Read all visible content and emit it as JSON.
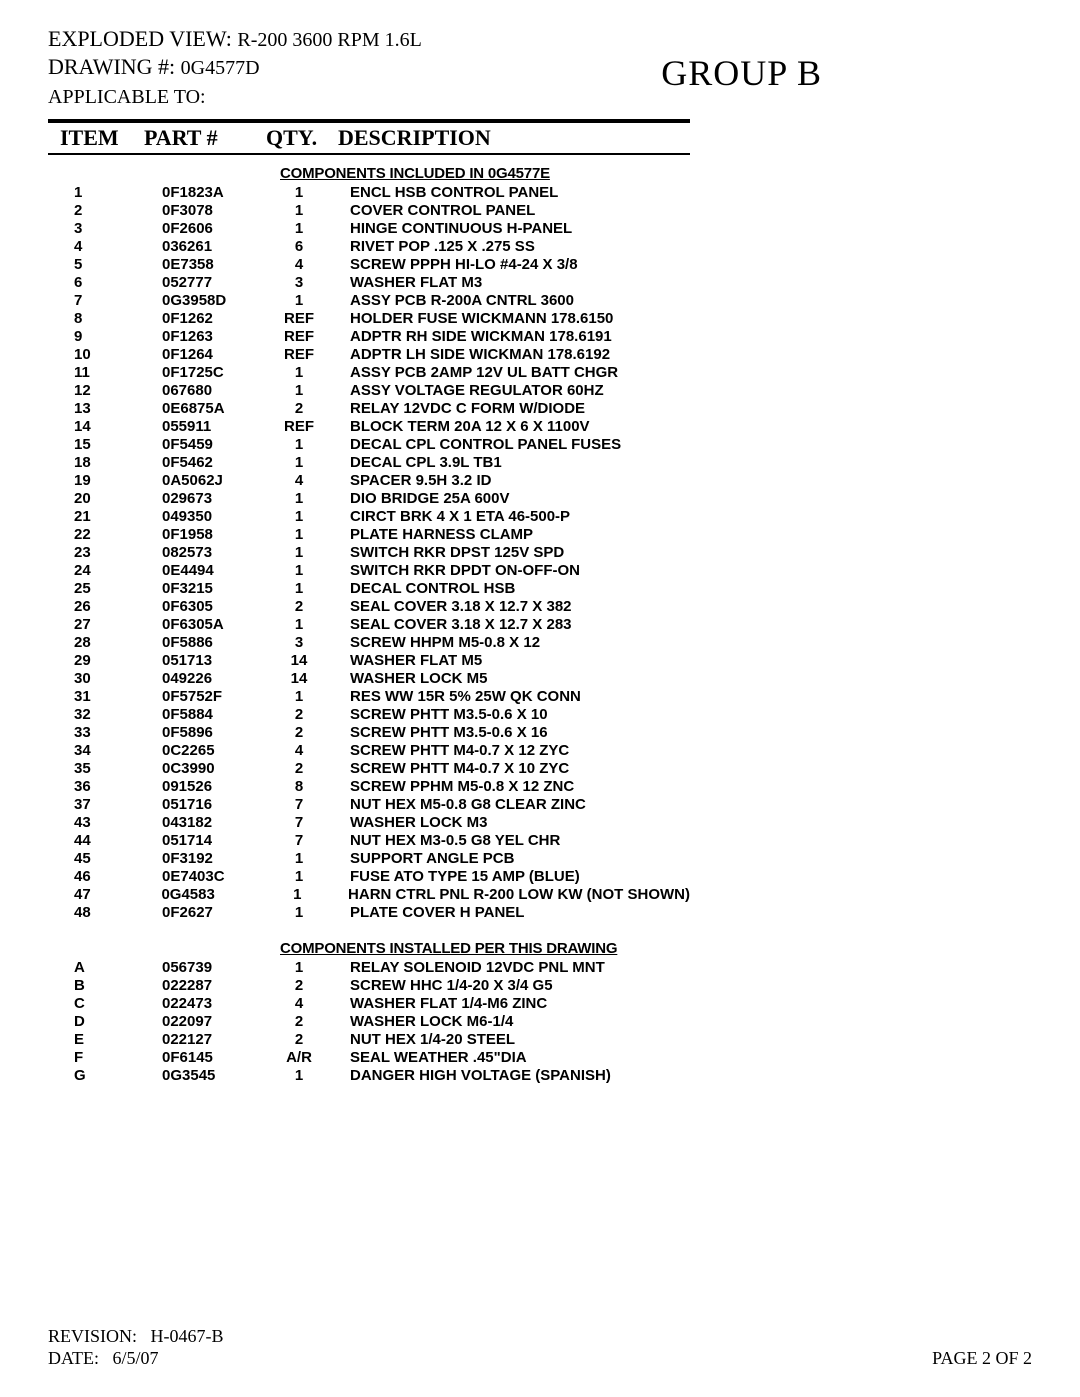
{
  "header": {
    "exploded_label": "EXPLODED VIEW:",
    "exploded_value": "R-200 3600 RPM 1.6L",
    "drawing_label": "DRAWING #:",
    "drawing_value": "0G4577D",
    "applicable_label": "APPLICABLE TO:",
    "group": "GROUP  B"
  },
  "columns": {
    "item": "ITEM",
    "part": "PART #",
    "qty": "QTY.",
    "desc": "DESCRIPTION"
  },
  "sections": [
    {
      "title": "COMPONENTS INCLUDED IN 0G4577E",
      "rows": [
        {
          "item": "1",
          "part": "0F1823A",
          "qty": "1",
          "desc": "ENCL HSB CONTROL PANEL"
        },
        {
          "item": "2",
          "part": "0F3078",
          "qty": "1",
          "desc": "COVER CONTROL PANEL"
        },
        {
          "item": "3",
          "part": "0F2606",
          "qty": "1",
          "desc": "HINGE CONTINUOUS H-PANEL"
        },
        {
          "item": "4",
          "part": "036261",
          "qty": "6",
          "desc": "RIVET POP .125 X .275 SS"
        },
        {
          "item": "5",
          "part": "0E7358",
          "qty": "4",
          "desc": "SCREW PPPH HI-LO #4-24 X 3/8"
        },
        {
          "item": "6",
          "part": "052777",
          "qty": "3",
          "desc": "WASHER FLAT M3"
        },
        {
          "item": "7",
          "part": "0G3958D",
          "qty": "1",
          "desc": "ASSY PCB R-200A CNTRL 3600"
        },
        {
          "item": "8",
          "part": "0F1262",
          "qty": "REF",
          "desc": "HOLDER FUSE WICKMANN 178.6150"
        },
        {
          "item": "9",
          "part": "0F1263",
          "qty": "REF",
          "desc": "ADPTR RH SIDE WICKMAN 178.6191"
        },
        {
          "item": "10",
          "part": "0F1264",
          "qty": "REF",
          "desc": "ADPTR LH SIDE WICKMAN 178.6192"
        },
        {
          "item": "11",
          "part": "0F1725C",
          "qty": "1",
          "desc": "ASSY PCB 2AMP 12V UL BATT CHGR"
        },
        {
          "item": "12",
          "part": "067680",
          "qty": "1",
          "desc": "ASSY VOLTAGE REGULATOR 60HZ"
        },
        {
          "item": "13",
          "part": "0E6875A",
          "qty": "2",
          "desc": "RELAY 12VDC C FORM W/DIODE"
        },
        {
          "item": "14",
          "part": "055911",
          "qty": "REF",
          "desc": "BLOCK TERM 20A 12 X 6 X 1100V"
        },
        {
          "item": "15",
          "part": "0F5459",
          "qty": "1",
          "desc": "DECAL CPL CONTROL PANEL FUSES"
        },
        {
          "item": "18",
          "part": "0F5462",
          "qty": "1",
          "desc": "DECAL CPL 3.9L TB1"
        },
        {
          "item": "19",
          "part": "0A5062J",
          "qty": "4",
          "desc": "SPACER 9.5H 3.2 ID"
        },
        {
          "item": "20",
          "part": "029673",
          "qty": "1",
          "desc": "DIO BRIDGE 25A 600V"
        },
        {
          "item": "21",
          "part": "049350",
          "qty": "1",
          "desc": "CIRCT BRK 4 X 1 ETA 46-500-P"
        },
        {
          "item": "22",
          "part": "0F1958",
          "qty": "1",
          "desc": "PLATE HARNESS CLAMP"
        },
        {
          "item": "23",
          "part": "082573",
          "qty": "1",
          "desc": "SWITCH RKR DPST 125V SPD"
        },
        {
          "item": "24",
          "part": "0E4494",
          "qty": "1",
          "desc": "SWITCH RKR DPDT ON-OFF-ON"
        },
        {
          "item": "25",
          "part": "0F3215",
          "qty": "1",
          "desc": "DECAL CONTROL HSB"
        },
        {
          "item": "26",
          "part": "0F6305",
          "qty": "2",
          "desc": "SEAL COVER 3.18 X 12.7 X 382"
        },
        {
          "item": "27",
          "part": "0F6305A",
          "qty": "1",
          "desc": "SEAL COVER 3.18 X 12.7 X 283"
        },
        {
          "item": "28",
          "part": "0F5886",
          "qty": "3",
          "desc": "SCREW HHPM M5-0.8 X 12"
        },
        {
          "item": "29",
          "part": "051713",
          "qty": "14",
          "desc": "WASHER FLAT M5"
        },
        {
          "item": "30",
          "part": "049226",
          "qty": "14",
          "desc": "WASHER LOCK M5"
        },
        {
          "item": "31",
          "part": "0F5752F",
          "qty": "1",
          "desc": "RES WW 15R 5% 25W QK CONN"
        },
        {
          "item": "32",
          "part": "0F5884",
          "qty": "2",
          "desc": "SCREW PHTT M3.5-0.6 X 10"
        },
        {
          "item": "33",
          "part": "0F5896",
          "qty": "2",
          "desc": "SCREW PHTT M3.5-0.6 X 16"
        },
        {
          "item": "34",
          "part": "0C2265",
          "qty": "4",
          "desc": "SCREW PHTT M4-0.7 X 12 ZYC"
        },
        {
          "item": "35",
          "part": "0C3990",
          "qty": "2",
          "desc": "SCREW PHTT M4-0.7 X 10 ZYC"
        },
        {
          "item": "36",
          "part": "091526",
          "qty": "8",
          "desc": "SCREW PPHM M5-0.8 X 12 ZNC"
        },
        {
          "item": "37",
          "part": "051716",
          "qty": "7",
          "desc": "NUT HEX M5-0.8 G8 CLEAR ZINC"
        },
        {
          "item": "43",
          "part": "043182",
          "qty": "7",
          "desc": "WASHER LOCK M3"
        },
        {
          "item": "44",
          "part": "051714",
          "qty": "7",
          "desc": "NUT HEX M3-0.5 G8 YEL CHR"
        },
        {
          "item": "45",
          "part": "0F3192",
          "qty": "1",
          "desc": "SUPPORT ANGLE PCB"
        },
        {
          "item": "46",
          "part": "0E7403C",
          "qty": "1",
          "desc": "FUSE ATO TYPE 15 AMP (BLUE)"
        },
        {
          "item": "47",
          "part": "0G4583",
          "qty": "1",
          "desc": "HARN CTRL PNL R-200 LOW KW (NOT SHOWN)"
        },
        {
          "item": "48",
          "part": "0F2627",
          "qty": "1",
          "desc": "PLATE COVER H PANEL"
        }
      ]
    },
    {
      "title": "COMPONENTS INSTALLED PER THIS DRAWING",
      "rows": [
        {
          "item": "A",
          "part": "056739",
          "qty": "1",
          "desc": "RELAY SOLENOID 12VDC PNL MNT"
        },
        {
          "item": "B",
          "part": "022287",
          "qty": "2",
          "desc": "SCREW HHC 1/4-20 X 3/4 G5"
        },
        {
          "item": "C",
          "part": "022473",
          "qty": "4",
          "desc": "WASHER FLAT 1/4-M6 ZINC"
        },
        {
          "item": "D",
          "part": "022097",
          "qty": "2",
          "desc": "WASHER LOCK M6-1/4"
        },
        {
          "item": "E",
          "part": "022127",
          "qty": "2",
          "desc": "NUT HEX 1/4-20 STEEL"
        },
        {
          "item": "F",
          "part": "0F6145",
          "qty": "A/R",
          "desc": "SEAL WEATHER .45\"DIA"
        },
        {
          "item": "G",
          "part": "0G3545",
          "qty": "1",
          "desc": "DANGER HIGH VOLTAGE (SPANISH)"
        }
      ]
    }
  ],
  "footer": {
    "revision_label": "REVISION:",
    "revision_value": "H-0467-B",
    "date_label": "DATE:",
    "date_value": "6/5/07",
    "page": "PAGE 2 OF 2"
  }
}
